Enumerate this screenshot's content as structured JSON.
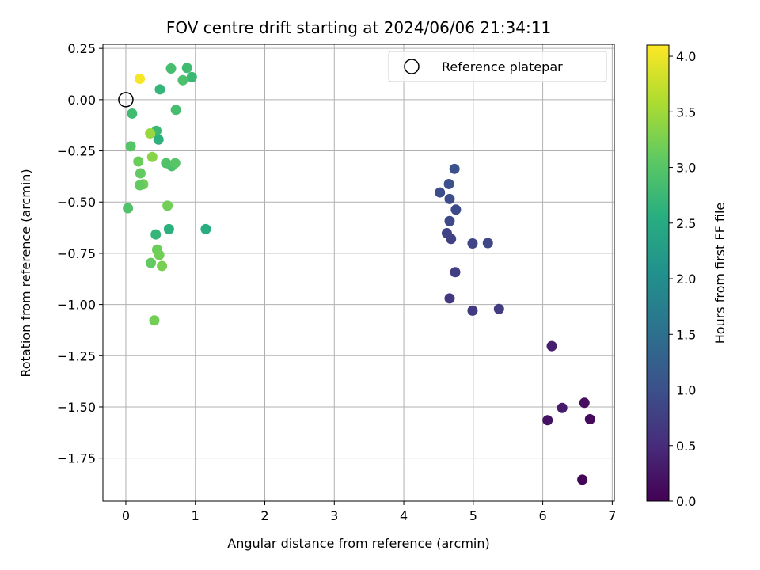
{
  "chart_data": {
    "type": "scatter",
    "title": "FOV centre drift starting at 2024/06/06 21:34:11",
    "xlabel": "Angular distance from reference (arcmin)",
    "ylabel": "Rotation from reference (arcmin)",
    "xlim": [
      -0.33,
      7.03
    ],
    "ylim": [
      -1.96,
      0.27
    ],
    "xticks": [
      0,
      1,
      2,
      3,
      4,
      5,
      6,
      7
    ],
    "yticks": [
      0.25,
      0.0,
      -0.25,
      -0.5,
      -0.75,
      -1.0,
      -1.25,
      -1.5,
      -1.75
    ],
    "xtick_labels": [
      "0",
      "1",
      "2",
      "3",
      "4",
      "5",
      "6",
      "7"
    ],
    "ytick_labels": [
      "0.25",
      "0.00",
      "−0.25",
      "−0.50",
      "−0.75",
      "−1.00",
      "−1.25",
      "−1.50",
      "−1.75"
    ],
    "grid": true,
    "legend": {
      "placement": "top-right",
      "label": "Reference platepar"
    },
    "reference_point": {
      "x": 0.0,
      "y": 0.0
    },
    "colorbar": {
      "label": "Hours from first FF file",
      "colormap": "viridis",
      "range": [
        0.0,
        4.1
      ],
      "ticks": [
        0.0,
        0.5,
        1.0,
        1.5,
        2.0,
        2.5,
        3.0,
        3.5,
        4.0
      ],
      "tick_labels": [
        "0.0",
        "0.5",
        "1.0",
        "1.5",
        "2.0",
        "2.5",
        "3.0",
        "3.5",
        "4.0"
      ]
    },
    "points": [
      {
        "x": 6.57,
        "y": -1.855,
        "c": 0.05
      },
      {
        "x": 6.68,
        "y": -1.56,
        "c": 0.1
      },
      {
        "x": 6.6,
        "y": -1.48,
        "c": 0.15
      },
      {
        "x": 6.07,
        "y": -1.565,
        "c": 0.2
      },
      {
        "x": 6.28,
        "y": -1.505,
        "c": 0.3
      },
      {
        "x": 6.13,
        "y": -1.203,
        "c": 0.35
      },
      {
        "x": 4.66,
        "y": -0.97,
        "c": 0.65
      },
      {
        "x": 4.99,
        "y": -1.03,
        "c": 0.7
      },
      {
        "x": 5.37,
        "y": -1.022,
        "c": 0.72
      },
      {
        "x": 4.74,
        "y": -0.842,
        "c": 0.75
      },
      {
        "x": 4.68,
        "y": -0.68,
        "c": 0.8
      },
      {
        "x": 4.62,
        "y": -0.652,
        "c": 0.82
      },
      {
        "x": 4.99,
        "y": -0.702,
        "c": 0.85
      },
      {
        "x": 5.21,
        "y": -0.7,
        "c": 0.87
      },
      {
        "x": 4.66,
        "y": -0.593,
        "c": 0.9
      },
      {
        "x": 4.75,
        "y": -0.537,
        "c": 0.92
      },
      {
        "x": 4.66,
        "y": -0.485,
        "c": 0.95
      },
      {
        "x": 4.52,
        "y": -0.453,
        "c": 0.97
      },
      {
        "x": 4.65,
        "y": -0.412,
        "c": 1.0
      },
      {
        "x": 4.73,
        "y": -0.338,
        "c": 1.02
      },
      {
        "x": 1.15,
        "y": -0.632,
        "c": 2.55
      },
      {
        "x": 0.62,
        "y": -0.632,
        "c": 2.6
      },
      {
        "x": 0.43,
        "y": -0.658,
        "c": 2.7
      },
      {
        "x": 0.47,
        "y": -0.195,
        "c": 2.6
      },
      {
        "x": 0.44,
        "y": -0.152,
        "c": 2.75
      },
      {
        "x": 0.49,
        "y": 0.05,
        "c": 2.7
      },
      {
        "x": 0.88,
        "y": 0.155,
        "c": 2.8
      },
      {
        "x": 0.95,
        "y": 0.11,
        "c": 2.75
      },
      {
        "x": 0.65,
        "y": 0.152,
        "c": 2.85
      },
      {
        "x": 0.82,
        "y": 0.095,
        "c": 2.9
      },
      {
        "x": 0.09,
        "y": -0.068,
        "c": 2.8
      },
      {
        "x": 0.72,
        "y": -0.05,
        "c": 2.85
      },
      {
        "x": 0.66,
        "y": -0.325,
        "c": 2.9
      },
      {
        "x": 0.58,
        "y": -0.31,
        "c": 2.95
      },
      {
        "x": 0.71,
        "y": -0.31,
        "c": 3.0
      },
      {
        "x": 0.07,
        "y": -0.228,
        "c": 3.0
      },
      {
        "x": 0.03,
        "y": -0.53,
        "c": 2.95
      },
      {
        "x": 0.21,
        "y": -0.36,
        "c": 3.1
      },
      {
        "x": 0.18,
        "y": -0.302,
        "c": 3.15
      },
      {
        "x": 0.25,
        "y": -0.413,
        "c": 3.2
      },
      {
        "x": 0.2,
        "y": -0.418,
        "c": 3.1
      },
      {
        "x": 0.6,
        "y": -0.518,
        "c": 3.2
      },
      {
        "x": 0.45,
        "y": -0.732,
        "c": 3.15
      },
      {
        "x": 0.48,
        "y": -0.758,
        "c": 3.2
      },
      {
        "x": 0.52,
        "y": -0.812,
        "c": 3.25
      },
      {
        "x": 0.36,
        "y": -0.797,
        "c": 3.1
      },
      {
        "x": 0.41,
        "y": -1.078,
        "c": 3.2
      },
      {
        "x": 0.38,
        "y": -0.28,
        "c": 3.35
      },
      {
        "x": 0.35,
        "y": -0.165,
        "c": 3.45
      },
      {
        "x": 0.2,
        "y": 0.102,
        "c": 4.05
      }
    ]
  }
}
